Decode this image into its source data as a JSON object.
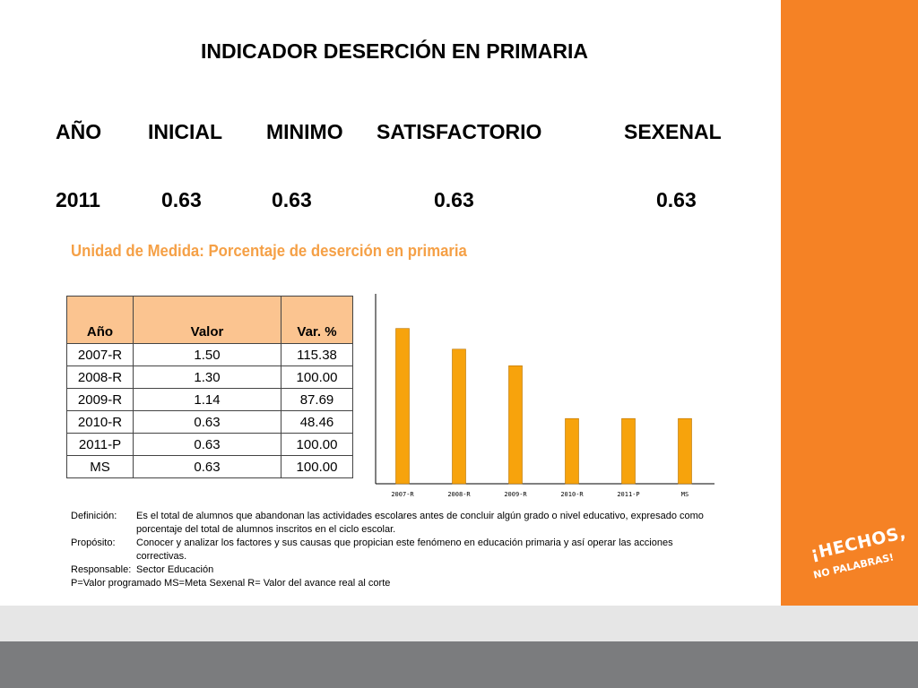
{
  "slide": {
    "title": "INDICADOR DESERCIÓN EN PRIMARIA",
    "summary": {
      "headers": [
        "AÑO",
        "INICIAL",
        "MINIMO",
        "SATISFACTORIO",
        "SEXENAL"
      ],
      "values": [
        "2011",
        "0.63",
        "0.63",
        "0.63",
        "0.63"
      ]
    },
    "unit_label": "Unidad de Medida:  Porcentaje de deserción en primaria",
    "table": {
      "headers": [
        "Año",
        "Valor",
        "Var. %"
      ],
      "rows": [
        [
          "2007-R",
          "1.50",
          "115.38"
        ],
        [
          "2008-R",
          "1.30",
          "100.00"
        ],
        [
          "2009-R",
          "1.14",
          "87.69"
        ],
        [
          "2010-R",
          "0.63",
          "48.46"
        ],
        [
          "2011-P",
          "0.63",
          "100.00"
        ],
        [
          "MS",
          "0.63",
          "100.00"
        ]
      ]
    },
    "definitions": [
      {
        "label": "Definición:",
        "text": "Es el total de alumnos que abandonan las actividades escolares antes de concluir algún grado o nivel educativo, expresado como porcentaje del total de alumnos inscritos en el ciclo escolar."
      },
      {
        "label": "Propósito:",
        "text": "Conocer y analizar los factores y sus causas que propician este fenómeno en educación primaria y así operar las acciones correctivas."
      },
      {
        "label": "Responsable:",
        "text": "Sector Educación"
      }
    ],
    "legend_line": "P=Valor programado    MS=Meta Sexenal    R= Valor del avance real al corte",
    "logo": {
      "line1": "¡HECHOS,",
      "line2": "NO PALABRAS!"
    }
  },
  "colors": {
    "accent_orange": "#f58225",
    "bar_fill": "#f7a30c",
    "table_header": "#fbc490",
    "subtitle_orange": "#f5a046",
    "band_light": "#e6e6e6",
    "band_dark": "#7b7c7e"
  },
  "chart_data": {
    "type": "bar",
    "categories": [
      "2007-R",
      "2008-R",
      "2009-R",
      "2010-R",
      "2011-P",
      "MS"
    ],
    "values": [
      1.5,
      1.3,
      1.14,
      0.63,
      0.63,
      0.63
    ],
    "ylim": [
      0,
      1.8
    ],
    "grid": false,
    "legend": "none"
  }
}
